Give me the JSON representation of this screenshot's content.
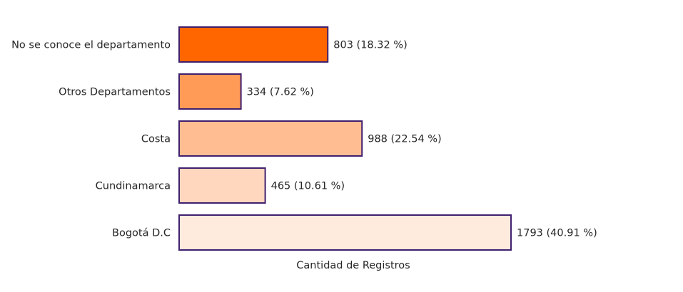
{
  "chart_data": {
    "type": "bar",
    "orientation": "horizontal",
    "title": "",
    "xlabel": "Cantidad de Registros",
    "ylabel": "",
    "grid": false,
    "legend": "none",
    "categories": [
      "No se conoce el departamento",
      "Otros Departamentos",
      "Costa",
      "Cundinamarca",
      "Bogotá D.C"
    ],
    "values": [
      803,
      334,
      988,
      465,
      1793
    ],
    "data_labels": [
      "803 (18.32 %)",
      "334 (7.62 %)",
      "988 (22.54 %)",
      "465 (10.61 %)",
      "1793 (40.91 %)"
    ],
    "xlim": [
      0,
      1793
    ],
    "colors": [
      "#ff6600",
      "#ff9a57",
      "#ffbd91",
      "#ffd7be",
      "#ffeade"
    ],
    "edge_color": "#3f1f6e"
  }
}
